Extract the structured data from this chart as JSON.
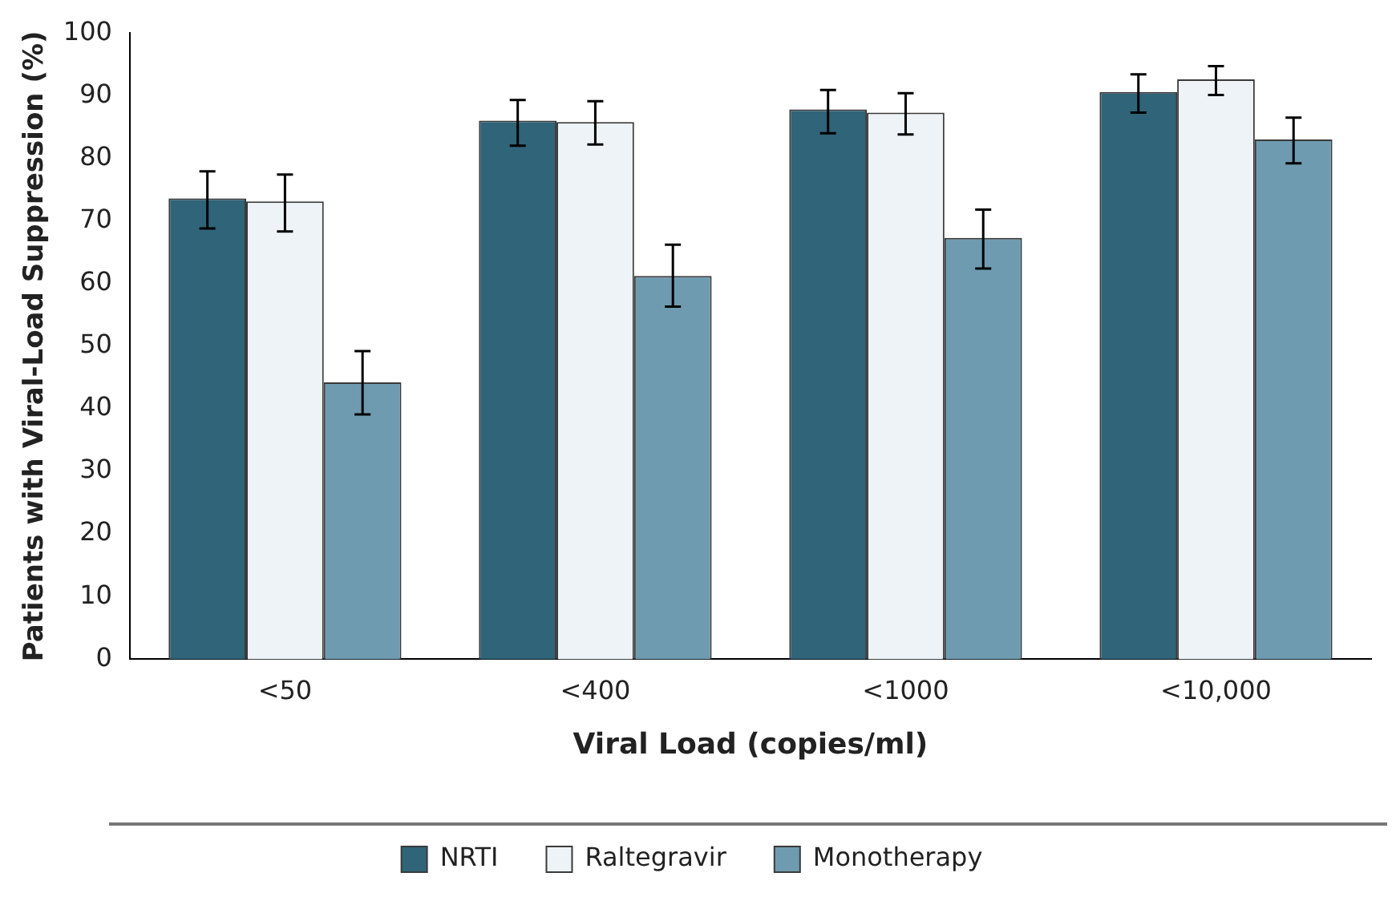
{
  "chart_data": {
    "type": "bar",
    "xlabel": "Viral Load (copies/ml)",
    "ylabel": "Patients with Viral-Load Suppression (%)",
    "categories": [
      "<50",
      "<400",
      "<1000",
      "<10,000"
    ],
    "series": [
      {
        "name": "NRTI",
        "color": "#2f6479",
        "values": [
          73.6,
          86.0,
          87.8,
          90.6
        ],
        "errors": [
          [
            68.8,
            77.9
          ],
          [
            82.0,
            89.3
          ],
          [
            84.0,
            90.9
          ],
          [
            87.3,
            93.4
          ]
        ]
      },
      {
        "name": "Raltegravir",
        "color": "#edf3f6",
        "values": [
          73.1,
          85.8,
          87.3,
          92.6
        ],
        "errors": [
          [
            68.3,
            77.4
          ],
          [
            82.2,
            89.1
          ],
          [
            83.8,
            90.4
          ],
          [
            90.1,
            94.7
          ]
        ]
      },
      {
        "name": "Monotherapy",
        "color": "#6f9bb0",
        "values": [
          44.2,
          61.2,
          67.3,
          83.0
        ],
        "errors": [
          [
            39.1,
            49.2
          ],
          [
            56.3,
            66.2
          ],
          [
            62.4,
            71.8
          ],
          [
            79.2,
            86.5
          ]
        ]
      }
    ],
    "ylim": [
      0,
      100
    ],
    "yticks": [
      0,
      10,
      20,
      30,
      40,
      50,
      60,
      70,
      80,
      90,
      100
    ],
    "grid": false,
    "legend": "bottom"
  }
}
